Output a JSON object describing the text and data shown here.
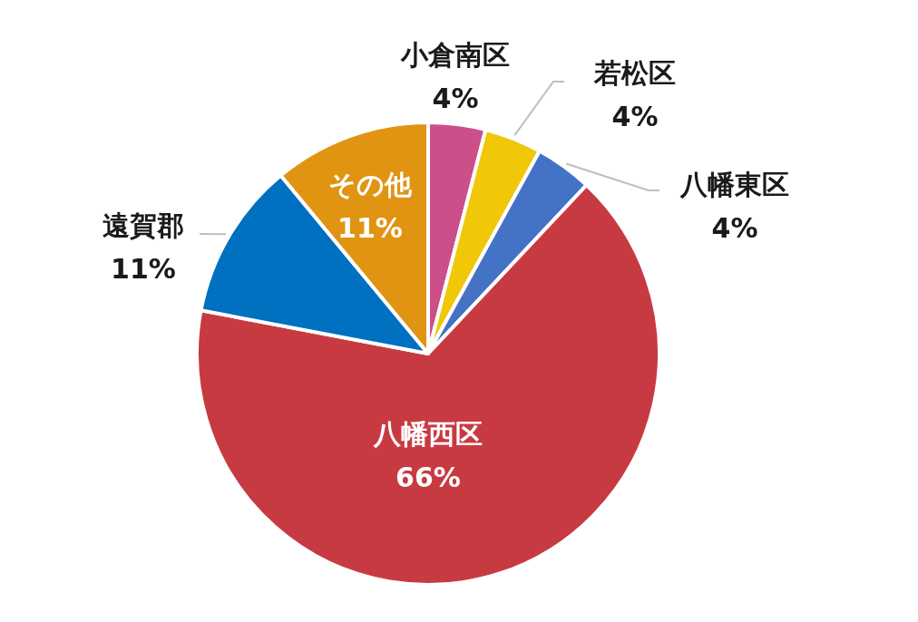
{
  "chart_data": {
    "type": "pie",
    "categories": [
      "小倉南区",
      "若松区",
      "八幡東区",
      "八幡西区",
      "遠賀郡",
      "その他"
    ],
    "values": [
      4,
      4,
      4,
      66,
      11,
      11
    ],
    "value_labels": [
      "4%",
      "4%",
      "4%",
      "66%",
      "11%",
      "11%"
    ],
    "colors": [
      "#cc4f8a",
      "#f0c808",
      "#4472c4",
      "#c83a42",
      "#0070c0",
      "#e09412"
    ]
  }
}
